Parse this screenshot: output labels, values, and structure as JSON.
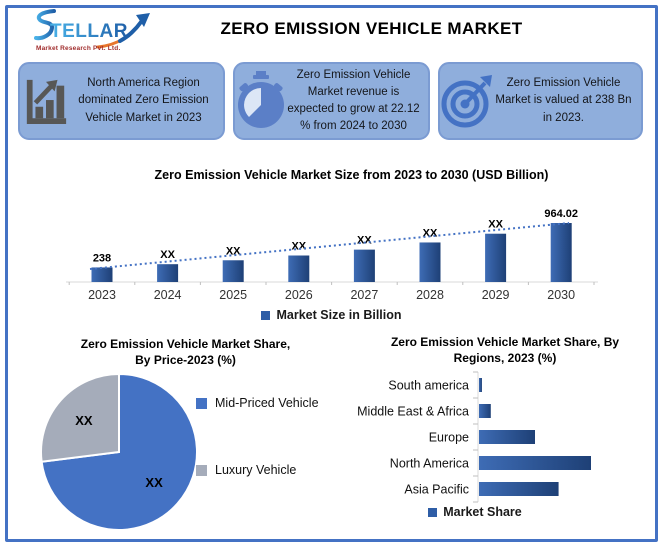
{
  "header": {
    "title": "ZERO EMISSION VEHICLE MARKET",
    "logo": {
      "name": "STELLAR",
      "subtitle": "Market Research Pvt. Ltd."
    }
  },
  "highlights": [
    {
      "icon": "growth-chart-icon",
      "text": "North America Region dominated Zero Emission Vehicle Market in 2023"
    },
    {
      "icon": "stopwatch-icon",
      "text": "Zero Emission Vehicle Market revenue is expected to grow at 22.12 % from 2024 to 2030"
    },
    {
      "icon": "target-dart-icon",
      "text": "Zero Emission Vehicle Market is valued at 238 Bn in 2023."
    }
  ],
  "colors": {
    "border_blue": "#4472C4",
    "accent": "#4472C4",
    "box_fill": "#8FAEDC",
    "box_border": "#7B9BD2",
    "bar_gradient_start": "#3E6CB5",
    "bar_gradient_end": "#1E4076",
    "bar_primary": "#2E5DA6",
    "pie_blue": "#4472C4",
    "pie_gray": "#A5ACBA",
    "axis_gray": "#D9D9D9",
    "tick_gray": "#BFBFBF",
    "icon_gray": "#575756",
    "logo_blue": "#2E75B6",
    "logo_red": "#A02C2C"
  },
  "chart_data": [
    {
      "id": "market_size",
      "type": "bar",
      "title": "Zero Emission Vehicle Market Size from 2023 to 2030 (USD Billion)",
      "categories": [
        "2023",
        "2024",
        "2025",
        "2026",
        "2027",
        "2028",
        "2029",
        "2030"
      ],
      "values": [
        238,
        291,
        355,
        433,
        529,
        646,
        789,
        964.02
      ],
      "data_labels": [
        "238",
        "XX",
        "XX",
        "XX",
        "XX",
        "XX",
        "XX",
        "964.02"
      ],
      "legend": "Market Size in Billion",
      "trendline": true,
      "ylim": [
        0,
        1000
      ],
      "grid": false,
      "legend_position": "bottom"
    },
    {
      "id": "share_by_price",
      "type": "pie",
      "title": "Zero Emission Vehicle Market Share, By Price-2023 (%)",
      "title_lines": [
        "Zero Emission Vehicle Market Share,",
        "By Price-2023 (%)"
      ],
      "slices": [
        {
          "label": "Mid-Priced Vehicle",
          "value": 73,
          "data_label": "XX",
          "color": "#4472C4"
        },
        {
          "label": "Luxury Vehicle",
          "value": 27,
          "data_label": "XX",
          "color": "#A5ACBA"
        }
      ],
      "legend_position": "right"
    },
    {
      "id": "share_by_region",
      "type": "hbar",
      "title": "Zero Emission Vehicle Market Share, By Regions, 2023 (%)",
      "title_lines": [
        "Zero Emission Vehicle Market Share, By",
        "Regions, 2023 (%)"
      ],
      "categories": [
        "South america",
        "Middle East & Africa",
        "Europe",
        "North America",
        "Asia Pacific"
      ],
      "values": [
        1,
        4,
        19,
        38,
        27
      ],
      "legend": "Market Share",
      "grid": false,
      "legend_position": "bottom"
    }
  ]
}
